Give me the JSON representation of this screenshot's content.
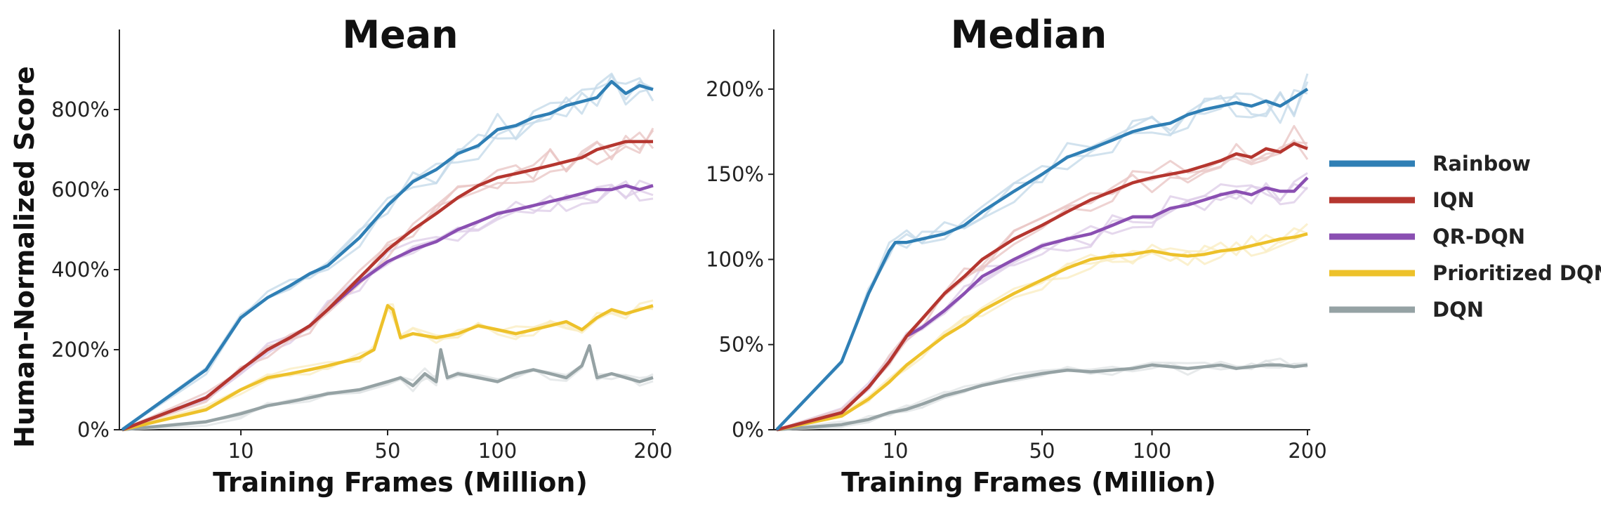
{
  "legend": [
    {
      "name": "Rainbow",
      "color": "#2f7fb5"
    },
    {
      "name": "IQN",
      "color": "#b5362f"
    },
    {
      "name": "QR-DQN",
      "color": "#8a4fb2"
    },
    {
      "name": "Prioritized DQN",
      "color": "#edc12a"
    },
    {
      "name": "DQN",
      "color": "#95a2a4"
    }
  ],
  "y_axis_label": "Human-Normalized Score",
  "chart_data": [
    {
      "type": "line",
      "title": "Mean",
      "xlabel": "Training Frames (Million)",
      "ylabel": "Human-Normalized Score",
      "xlim": [
        0,
        200
      ],
      "ylim": [
        0,
        1000
      ],
      "xticks": [
        10,
        50,
        100,
        200
      ],
      "xtick_labels": [
        "10",
        "50",
        "100",
        "200"
      ],
      "yticks": [
        0,
        200,
        400,
        600,
        800
      ],
      "ytick_labels": [
        "0%",
        "200%",
        "400%",
        "600%",
        "800%"
      ],
      "x_scale": "sqrt",
      "legend": "right",
      "grid": false,
      "series": [
        {
          "name": "Rainbow",
          "color": "#2f7fb5",
          "x": [
            0,
            5,
            10,
            15,
            20,
            25,
            30,
            40,
            50,
            60,
            70,
            80,
            90,
            100,
            110,
            120,
            130,
            140,
            150,
            160,
            170,
            180,
            190,
            200
          ],
          "values": [
            0,
            150,
            280,
            330,
            360,
            390,
            410,
            480,
            560,
            620,
            650,
            690,
            710,
            750,
            760,
            780,
            790,
            810,
            820,
            830,
            870,
            840,
            860,
            850
          ]
        },
        {
          "name": "IQN",
          "color": "#b5362f",
          "x": [
            0,
            5,
            10,
            15,
            20,
            25,
            30,
            40,
            50,
            60,
            70,
            80,
            90,
            100,
            110,
            120,
            130,
            140,
            150,
            160,
            170,
            180,
            190,
            200
          ],
          "values": [
            0,
            80,
            150,
            200,
            230,
            260,
            300,
            380,
            450,
            500,
            540,
            580,
            610,
            630,
            640,
            650,
            660,
            670,
            680,
            700,
            710,
            720,
            720,
            720
          ]
        },
        {
          "name": "QR-DQN",
          "color": "#8a4fb2",
          "x": [
            0,
            5,
            10,
            15,
            20,
            25,
            30,
            40,
            50,
            60,
            70,
            80,
            90,
            100,
            110,
            120,
            130,
            140,
            150,
            160,
            170,
            180,
            190,
            200
          ],
          "values": [
            0,
            80,
            150,
            200,
            230,
            260,
            300,
            370,
            420,
            450,
            470,
            500,
            520,
            540,
            550,
            560,
            570,
            580,
            590,
            600,
            600,
            610,
            600,
            610
          ]
        },
        {
          "name": "Prioritized DQN",
          "color": "#edc12a",
          "x": [
            0,
            5,
            10,
            15,
            20,
            25,
            30,
            40,
            45,
            50,
            52,
            55,
            60,
            70,
            80,
            90,
            100,
            110,
            120,
            130,
            140,
            150,
            160,
            170,
            180,
            190,
            200
          ],
          "values": [
            0,
            50,
            100,
            130,
            140,
            150,
            160,
            180,
            200,
            310,
            300,
            230,
            240,
            230,
            240,
            260,
            250,
            240,
            250,
            260,
            270,
            250,
            280,
            300,
            290,
            300,
            310
          ]
        },
        {
          "name": "DQN",
          "color": "#95a2a4",
          "x": [
            0,
            5,
            10,
            15,
            20,
            25,
            30,
            40,
            50,
            55,
            60,
            65,
            70,
            72,
            75,
            80,
            90,
            100,
            110,
            120,
            130,
            140,
            150,
            155,
            160,
            170,
            180,
            190,
            200
          ],
          "values": [
            0,
            20,
            40,
            60,
            70,
            80,
            90,
            100,
            120,
            130,
            110,
            140,
            120,
            200,
            130,
            140,
            130,
            120,
            140,
            150,
            140,
            130,
            160,
            210,
            130,
            140,
            130,
            120,
            130
          ]
        }
      ]
    },
    {
      "type": "line",
      "title": "Median",
      "xlabel": "Training Frames (Million)",
      "xlim": [
        0,
        200
      ],
      "ylim": [
        0,
        235
      ],
      "xticks": [
        10,
        50,
        100,
        200
      ],
      "xtick_labels": [
        "10",
        "50",
        "100",
        "200"
      ],
      "yticks": [
        0,
        50,
        100,
        150,
        200
      ],
      "ytick_labels": [
        "0%",
        "50%",
        "100%",
        "150%",
        "200%"
      ],
      "x_scale": "sqrt",
      "grid": false,
      "series": [
        {
          "name": "Rainbow",
          "color": "#2f7fb5",
          "x": [
            0,
            3,
            6,
            9,
            10,
            12,
            15,
            20,
            25,
            30,
            40,
            50,
            60,
            70,
            80,
            90,
            100,
            110,
            120,
            130,
            140,
            150,
            160,
            170,
            180,
            190,
            200
          ],
          "values": [
            0,
            40,
            80,
            105,
            110,
            110,
            112,
            115,
            120,
            128,
            140,
            150,
            160,
            165,
            170,
            175,
            178,
            180,
            185,
            188,
            190,
            192,
            190,
            193,
            190,
            195,
            200
          ]
        },
        {
          "name": "IQN",
          "color": "#b5362f",
          "x": [
            0,
            3,
            6,
            9,
            12,
            15,
            20,
            25,
            30,
            40,
            50,
            60,
            70,
            80,
            90,
            100,
            110,
            120,
            130,
            140,
            150,
            160,
            170,
            180,
            190,
            200
          ],
          "values": [
            0,
            10,
            25,
            40,
            55,
            65,
            80,
            90,
            100,
            112,
            120,
            128,
            135,
            140,
            145,
            148,
            150,
            152,
            155,
            158,
            162,
            160,
            165,
            163,
            168,
            165
          ]
        },
        {
          "name": "QR-DQN",
          "color": "#8a4fb2",
          "x": [
            0,
            3,
            6,
            9,
            12,
            15,
            20,
            25,
            30,
            40,
            50,
            60,
            70,
            80,
            90,
            100,
            110,
            120,
            130,
            140,
            150,
            160,
            170,
            180,
            190,
            200
          ],
          "values": [
            0,
            10,
            25,
            40,
            55,
            60,
            70,
            80,
            90,
            100,
            108,
            112,
            115,
            120,
            125,
            125,
            130,
            132,
            135,
            138,
            140,
            138,
            142,
            140,
            140,
            148
          ]
        },
        {
          "name": "Prioritized DQN",
          "color": "#edc12a",
          "x": [
            0,
            3,
            6,
            9,
            12,
            15,
            20,
            25,
            30,
            40,
            50,
            60,
            70,
            80,
            90,
            100,
            110,
            120,
            130,
            140,
            150,
            160,
            170,
            180,
            190,
            200
          ],
          "values": [
            0,
            8,
            18,
            28,
            38,
            45,
            55,
            62,
            70,
            80,
            88,
            95,
            100,
            102,
            103,
            105,
            103,
            102,
            103,
            105,
            106,
            108,
            110,
            112,
            113,
            115
          ]
        },
        {
          "name": "DQN",
          "color": "#95a2a4",
          "x": [
            0,
            3,
            6,
            9,
            12,
            15,
            20,
            25,
            30,
            40,
            50,
            60,
            70,
            80,
            90,
            100,
            110,
            120,
            130,
            140,
            150,
            160,
            170,
            180,
            190,
            200
          ],
          "values": [
            0,
            3,
            6,
            10,
            12,
            15,
            20,
            23,
            26,
            30,
            33,
            35,
            34,
            35,
            36,
            38,
            37,
            36,
            37,
            38,
            36,
            37,
            38,
            38,
            37,
            38
          ]
        }
      ]
    }
  ]
}
